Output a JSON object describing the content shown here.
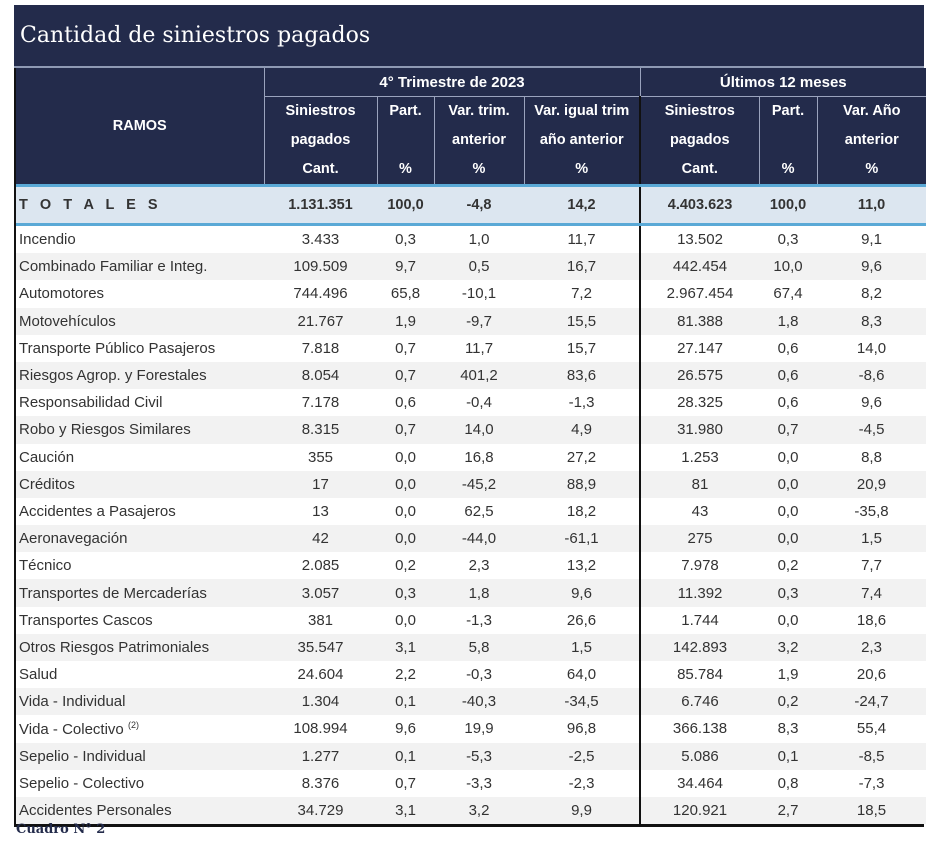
{
  "title": "Cantidad de siniestros pagados",
  "header": {
    "ramos": "RAMOS",
    "group1": "4° Trimestre de 2023",
    "group2": "Últimos 12 meses",
    "cols": [
      [
        "Siniestros",
        "pagados",
        "Cant."
      ],
      [
        "Part.",
        "",
        "%"
      ],
      [
        "Var. trim.",
        "anterior",
        "%"
      ],
      [
        "Var. igual trim",
        "año anterior",
        "%"
      ],
      [
        "Siniestros",
        "pagados",
        "Cant."
      ],
      [
        "Part.",
        "",
        "%"
      ],
      [
        "Var. Año",
        "anterior",
        "%"
      ]
    ]
  },
  "totals": [
    "T O T A L E S",
    "1.131.351",
    "100,0",
    "-4,8",
    "14,2",
    "4.403.623",
    "100,0",
    "11,0"
  ],
  "rows": [
    [
      "Incendio",
      "3.433",
      "0,3",
      "1,0",
      "11,7",
      "13.502",
      "0,3",
      "9,1"
    ],
    [
      "Combinado Familiar e Integ.",
      "109.509",
      "9,7",
      "0,5",
      "16,7",
      "442.454",
      "10,0",
      "9,6"
    ],
    [
      "Automotores",
      "744.496",
      "65,8",
      "-10,1",
      "7,2",
      "2.967.454",
      "67,4",
      "8,2"
    ],
    [
      "Motovehículos",
      "21.767",
      "1,9",
      "-9,7",
      "15,5",
      "81.388",
      "1,8",
      "8,3"
    ],
    [
      "Transporte Público Pasajeros",
      "7.818",
      "0,7",
      "11,7",
      "15,7",
      "27.147",
      "0,6",
      "14,0"
    ],
    [
      "Riesgos Agrop. y Forestales",
      "8.054",
      "0,7",
      "401,2",
      "83,6",
      "26.575",
      "0,6",
      "-8,6"
    ],
    [
      "Responsabilidad Civil",
      "7.178",
      "0,6",
      "-0,4",
      "-1,3",
      "28.325",
      "0,6",
      "9,6"
    ],
    [
      "Robo y Riesgos Similares",
      "8.315",
      "0,7",
      "14,0",
      "4,9",
      "31.980",
      "0,7",
      "-4,5"
    ],
    [
      "Caución",
      "355",
      "0,0",
      "16,8",
      "27,2",
      "1.253",
      "0,0",
      "8,8"
    ],
    [
      "Créditos",
      "17",
      "0,0",
      "-45,2",
      "88,9",
      "81",
      "0,0",
      "20,9"
    ],
    [
      "Accidentes a Pasajeros",
      "13",
      "0,0",
      "62,5",
      "18,2",
      "43",
      "0,0",
      "-35,8"
    ],
    [
      "Aeronavegación",
      "42",
      "0,0",
      "-44,0",
      "-61,1",
      "275",
      "0,0",
      "1,5"
    ],
    [
      "Técnico",
      "2.085",
      "0,2",
      "2,3",
      "13,2",
      "7.978",
      "0,2",
      "7,7"
    ],
    [
      "Transportes de Mercaderías",
      "3.057",
      "0,3",
      "1,8",
      "9,6",
      "11.392",
      "0,3",
      "7,4"
    ],
    [
      "Transportes Cascos",
      "381",
      "0,0",
      "-1,3",
      "26,6",
      "1.744",
      "0,0",
      "18,6"
    ],
    [
      "Otros Riesgos Patrimoniales",
      "35.547",
      "3,1",
      "5,8",
      "1,5",
      "142.893",
      "3,2",
      "2,3"
    ],
    [
      "Salud",
      "24.604",
      "2,2",
      "-0,3",
      "64,0",
      "85.784",
      "1,9",
      "20,6"
    ],
    [
      "Vida - Individual",
      "1.304",
      "0,1",
      "-40,3",
      "-34,5",
      "6.746",
      "0,2",
      "-24,7"
    ],
    [
      "Vida - Colectivo",
      "108.994",
      "9,6",
      "19,9",
      "96,8",
      "366.138",
      "8,3",
      "55,4"
    ],
    [
      "Sepelio - Individual",
      "1.277",
      "0,1",
      "-5,3",
      "-2,5",
      "5.086",
      "0,1",
      "-8,5"
    ],
    [
      "Sepelio - Colectivo",
      "8.376",
      "0,7",
      "-3,3",
      "-2,3",
      "34.464",
      "0,8",
      "-7,3"
    ],
    [
      "Accidentes Personales",
      "34.729",
      "3,1",
      "3,2",
      "9,9",
      "120.921",
      "2,7",
      "18,5"
    ]
  ],
  "footnote_mark": "(2)",
  "footnote_row_index": 18,
  "caption": "Cuadro N° 2"
}
